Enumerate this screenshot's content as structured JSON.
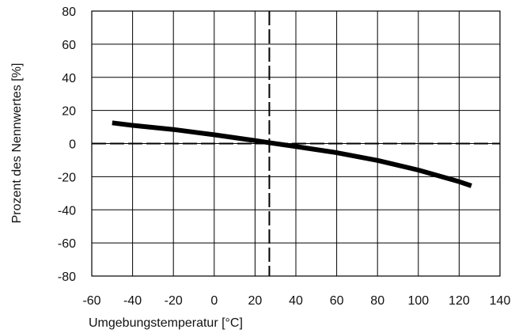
{
  "chart_data": {
    "type": "line",
    "xlabel": "Umgebungstemperatur [°C]",
    "ylabel": "Prozent des Nennwertes [%]",
    "xlim": [
      -60,
      140
    ],
    "ylim": [
      -80,
      80
    ],
    "xticks": [
      -60,
      -40,
      -20,
      0,
      20,
      40,
      60,
      80,
      100,
      120,
      140
    ],
    "yticks": [
      -80,
      -60,
      -40,
      -20,
      0,
      20,
      40,
      60,
      80
    ],
    "grid": true,
    "series": [
      {
        "x": [
          -50,
          -40,
          -20,
          0,
          20,
          27,
          40,
          60,
          80,
          100,
          120,
          126
        ],
        "y": [
          12.5,
          11,
          8.5,
          5.3,
          1.8,
          0.5,
          -1.8,
          -5.5,
          -10.2,
          -16,
          -23,
          -25.5
        ]
      }
    ],
    "reference_lines": [
      {
        "axis": "x",
        "value": 27,
        "style": "dashed"
      },
      {
        "axis": "y",
        "value": 0,
        "style": "dashed"
      }
    ],
    "colors": {
      "curve": "#000000",
      "grid": "#000000",
      "reference": "#000000",
      "background": "#ffffff"
    }
  }
}
